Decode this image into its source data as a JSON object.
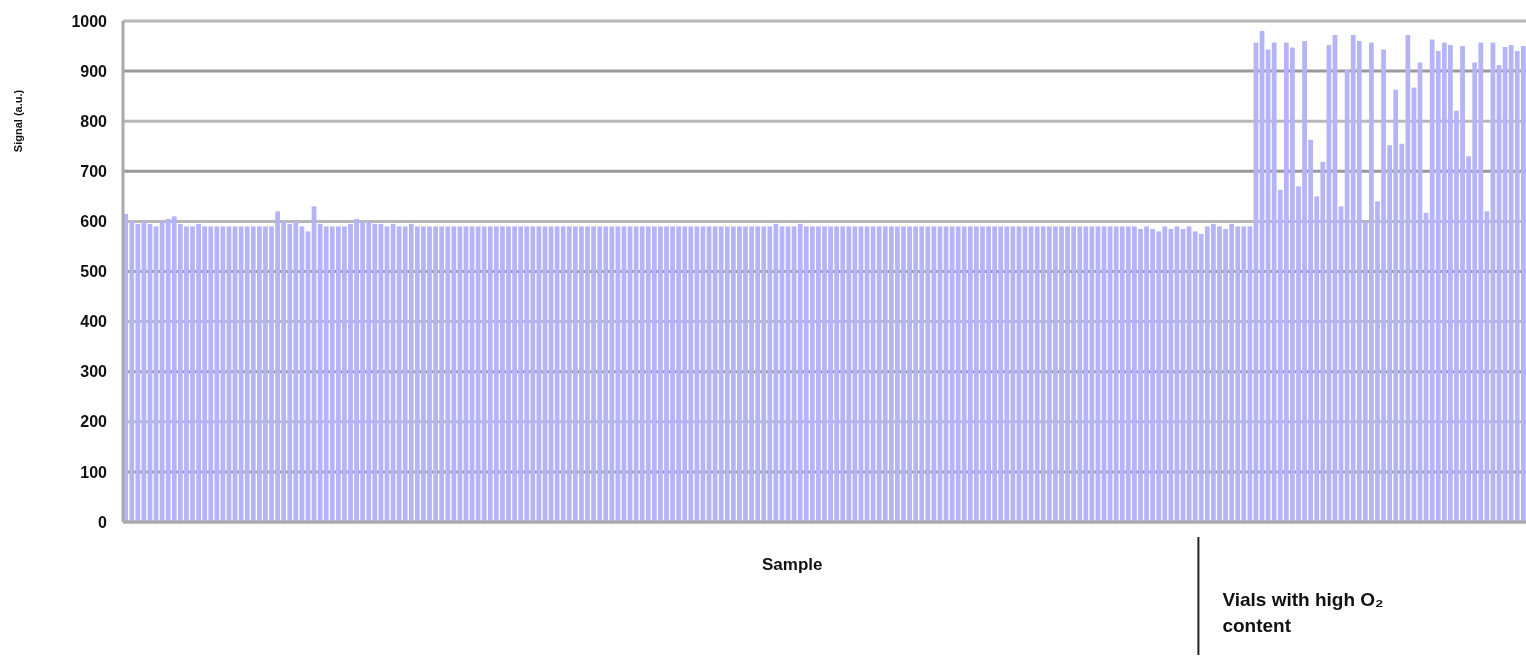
{
  "chart_data": {
    "type": "bar",
    "xlabel": "Sample",
    "ylabel": "Signal (a.u.)",
    "annotations": [
      "Vials with high O₂ content"
    ],
    "color": "#b4b4f6",
    "ylim": [
      0,
      1000
    ],
    "yticks": [
      0,
      100,
      200,
      300,
      400,
      500,
      600,
      700,
      800,
      900,
      1000
    ],
    "grid": "y",
    "categories": [
      null,
      null,
      null,
      null,
      null,
      null,
      null,
      null,
      null,
      null,
      null,
      null,
      null,
      null,
      null,
      null,
      null,
      null,
      null,
      null,
      null,
      null,
      null,
      null,
      null,
      null,
      null,
      null,
      null,
      null,
      null,
      null,
      null,
      null,
      null,
      null,
      null,
      null,
      null,
      null,
      null,
      null,
      null,
      null,
      null,
      null,
      null,
      null,
      null,
      null,
      null,
      null,
      null,
      null,
      null,
      null,
      null,
      null,
      null,
      null,
      null,
      null,
      null,
      null,
      null,
      null,
      null,
      null,
      null,
      null,
      null,
      null,
      null,
      null,
      null,
      null,
      null,
      null,
      null,
      null,
      null,
      null,
      null,
      null,
      null,
      null,
      null,
      null,
      null,
      null,
      null,
      null,
      null,
      null,
      null,
      null,
      null,
      null,
      null,
      null,
      null,
      null,
      null,
      null,
      null,
      null,
      null,
      null,
      null,
      null,
      null,
      null,
      null,
      null,
      null,
      null,
      null,
      null,
      null,
      null,
      null,
      null,
      null,
      null,
      null,
      null,
      null,
      null,
      null,
      null,
      null,
      null,
      null,
      null,
      null,
      null,
      null,
      null,
      null,
      null,
      null,
      null,
      null,
      null,
      null,
      null,
      null,
      null,
      null,
      null,
      null,
      null,
      null,
      null,
      null,
      null,
      null,
      null,
      null,
      null,
      null,
      null,
      null,
      null,
      null,
      null,
      null,
      null,
      null,
      null,
      null,
      null,
      null,
      null,
      null,
      null,
      null,
      null,
      null,
      null,
      null,
      null,
      null,
      null,
      null,
      null,
      null,
      null,
      null,
      null,
      null,
      null,
      null,
      null,
      null,
      null,
      null,
      null,
      null,
      null,
      null,
      null,
      null,
      null,
      null,
      null,
      null,
      null,
      null,
      null,
      null,
      null,
      null,
      null,
      null,
      null,
      null,
      null,
      null,
      null,
      null,
      null,
      null,
      null,
      null,
      null,
      null,
      null,
      null,
      null,
      null
    ],
    "values": [
      615,
      600,
      595,
      600,
      595,
      590,
      600,
      605,
      610,
      595,
      590,
      590,
      595,
      590,
      590,
      590,
      590,
      590,
      590,
      590,
      590,
      590,
      590,
      590,
      590,
      620,
      600,
      595,
      600,
      590,
      580,
      630,
      595,
      590,
      590,
      590,
      590,
      595,
      605,
      600,
      600,
      595,
      595,
      590,
      595,
      590,
      590,
      595,
      590,
      590,
      590,
      590,
      590,
      590,
      590,
      590,
      590,
      590,
      590,
      590,
      590,
      590,
      590,
      590,
      590,
      590,
      590,
      590,
      590,
      590,
      590,
      590,
      590,
      590,
      590,
      590,
      590,
      590,
      590,
      590,
      590,
      590,
      590,
      590,
      590,
      590,
      590,
      590,
      590,
      590,
      590,
      590,
      590,
      590,
      590,
      590,
      590,
      590,
      590,
      590,
      590,
      590,
      590,
      590,
      590,
      590,
      590,
      595,
      590,
      590,
      590,
      595,
      590,
      590,
      590,
      590,
      590,
      590,
      590,
      590,
      590,
      590,
      590,
      590,
      590,
      590,
      590,
      590,
      590,
      590,
      590,
      590,
      590,
      590,
      590,
      590,
      590,
      590,
      590,
      590,
      590,
      590,
      590,
      590,
      590,
      590,
      590,
      590,
      590,
      590,
      590,
      590,
      590,
      590,
      590,
      590,
      590,
      590,
      590,
      590,
      590,
      590,
      590,
      590,
      590,
      590,
      590,
      585,
      590,
      585,
      580,
      590,
      585,
      590,
      585,
      590,
      580,
      575,
      590,
      595,
      590,
      585,
      595,
      590,
      590,
      590,
      957,
      980,
      943,
      957,
      663,
      957,
      947,
      670,
      960,
      763,
      650,
      719,
      952,
      972,
      630,
      903,
      972,
      960,
      600,
      957,
      640,
      943,
      752,
      863,
      755,
      972,
      867,
      917,
      617,
      963,
      940,
      957,
      952,
      821,
      950,
      730,
      917,
      957,
      620,
      957,
      912,
      948,
      952,
      940,
      950
    ]
  }
}
